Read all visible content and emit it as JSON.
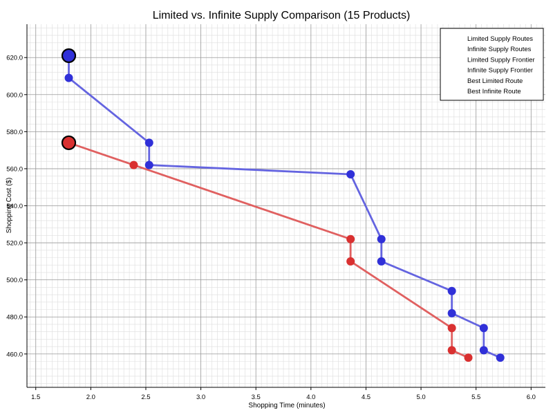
{
  "chart_data": {
    "type": "line",
    "title": "Limited vs. Infinite Supply Comparison (15 Products)",
    "xlabel": "Shopping Time (minutes)",
    "ylabel": "Shopping Cost ($)",
    "xlim": [
      1.42,
      6.13
    ],
    "ylim": [
      442,
      638
    ],
    "xticks": [
      1.5,
      2.0,
      2.5,
      3.0,
      3.5,
      4.0,
      4.5,
      5.0,
      5.5,
      6.0
    ],
    "xtick_labels": [
      "1.5",
      "2.0",
      "2.5",
      "3.0",
      "3.5",
      "4.0",
      "4.5",
      "5.0",
      "5.5",
      "6.0"
    ],
    "yticks": [
      460,
      480,
      500,
      520,
      540,
      560,
      580,
      600,
      620
    ],
    "ytick_labels": [
      "460.0",
      "480.0",
      "500.0",
      "520.0",
      "540.0",
      "560.0",
      "580.0",
      "600.0",
      "620.0"
    ],
    "grid": true,
    "legend_position": "top-right",
    "legend": [
      "Limited Supply Routes",
      "Infinite Supply Routes",
      "Limited Supply Frontier",
      "Infinite Supply Frontier",
      "Best Limited Route",
      "Best Infinite Route"
    ],
    "series": [
      {
        "name": "Limited Supply Frontier",
        "color": "#e06060",
        "marker_color": "#d93030",
        "x": [
          1.8,
          2.39,
          4.36,
          4.36,
          5.28,
          5.28,
          5.43
        ],
        "y": [
          574,
          562,
          522,
          510,
          474,
          462,
          458
        ]
      },
      {
        "name": "Infinite Supply Frontier",
        "color": "#6464e0",
        "marker_color": "#3030d8",
        "x": [
          1.8,
          1.8,
          2.53,
          2.53,
          4.36,
          4.64,
          4.64,
          5.28,
          5.28,
          5.57,
          5.57,
          5.72
        ],
        "y": [
          621,
          609,
          574,
          562,
          557,
          522,
          510,
          494,
          482,
          474,
          462,
          458
        ]
      }
    ],
    "best_points": [
      {
        "name": "Best Limited Route",
        "x": 1.8,
        "y": 574,
        "color": "#d93030"
      },
      {
        "name": "Best Infinite Route",
        "x": 1.8,
        "y": 621,
        "color": "#3030d8"
      }
    ]
  }
}
